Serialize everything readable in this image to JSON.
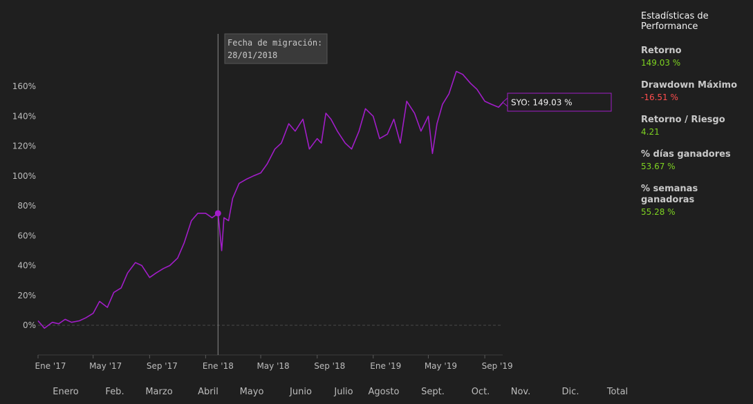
{
  "chart_data": {
    "type": "line",
    "series": [
      {
        "name": "SYO",
        "color": "#a21dc9",
        "x": [
          "2017-01-01",
          "2017-01-15",
          "2017-02-01",
          "2017-02-15",
          "2017-03-01",
          "2017-03-15",
          "2017-04-01",
          "2017-04-15",
          "2017-05-01",
          "2017-05-15",
          "2017-06-01",
          "2017-06-15",
          "2017-07-01",
          "2017-07-15",
          "2017-08-01",
          "2017-08-15",
          "2017-09-01",
          "2017-09-15",
          "2017-10-01",
          "2017-10-15",
          "2017-11-01",
          "2017-11-15",
          "2017-12-01",
          "2017-12-15",
          "2018-01-01",
          "2018-01-15",
          "2018-01-28",
          "2018-02-05",
          "2018-02-10",
          "2018-02-20",
          "2018-03-01",
          "2018-03-15",
          "2018-04-01",
          "2018-04-15",
          "2018-05-01",
          "2018-05-15",
          "2018-06-01",
          "2018-06-15",
          "2018-07-01",
          "2018-07-15",
          "2018-08-01",
          "2018-08-15",
          "2018-09-01",
          "2018-09-10",
          "2018-09-20",
          "2018-10-01",
          "2018-10-15",
          "2018-11-01",
          "2018-11-15",
          "2018-12-01",
          "2018-12-15",
          "2019-01-01",
          "2019-01-15",
          "2019-02-01",
          "2019-02-15",
          "2019-03-01",
          "2019-03-15",
          "2019-04-01",
          "2019-04-15",
          "2019-05-01",
          "2019-05-10",
          "2019-05-20",
          "2019-06-01",
          "2019-06-15",
          "2019-07-01",
          "2019-07-15",
          "2019-08-01",
          "2019-08-15",
          "2019-09-01",
          "2019-09-15",
          "2019-10-01",
          "2019-10-10"
        ],
        "y": [
          3,
          -2,
          2,
          1,
          4,
          2,
          3,
          5,
          8,
          16,
          12,
          22,
          25,
          35,
          42,
          40,
          32,
          35,
          38,
          40,
          45,
          55,
          70,
          75,
          75,
          72,
          75,
          50,
          72,
          70,
          85,
          95,
          98,
          100,
          102,
          108,
          118,
          122,
          135,
          130,
          138,
          118,
          125,
          122,
          142,
          138,
          130,
          122,
          118,
          130,
          145,
          140,
          125,
          128,
          138,
          122,
          150,
          142,
          130,
          140,
          115,
          135,
          148,
          155,
          170,
          168,
          162,
          158,
          150,
          148,
          146,
          149.03
        ]
      }
    ],
    "x_tick_labels": [
      "Ene '17",
      "May '17",
      "Sep '17",
      "Ene '18",
      "May '18",
      "Sep '18",
      "Ene '19",
      "May '19",
      "Sep '19"
    ],
    "y_tick_labels": [
      "0%",
      "20%",
      "40%",
      "60%",
      "80%",
      "100%",
      "120%",
      "140%",
      "160%"
    ],
    "ylim": [
      -20,
      180
    ],
    "grid": false,
    "annotations": [
      {
        "label": "Fecha de migración:",
        "date": "28/01/2018",
        "x": "2018-01-28",
        "y": 75
      }
    ],
    "end_label": "SYO: 149.03 %"
  },
  "colors": {
    "background": "#1f1f1f",
    "positive": "#7ed321",
    "negative": "#ff4d4d",
    "series": "#a21dc9"
  },
  "stats": {
    "title": "Estadísticas de Performance",
    "items": [
      {
        "label": "Retorno",
        "value": "149.03 %",
        "tone": "positive"
      },
      {
        "label": "Drawdown Máximo",
        "value": "-16.51 %",
        "tone": "negative"
      },
      {
        "label": "Retorno / Riesgo",
        "value": "4.21",
        "tone": "positive"
      },
      {
        "label": "% días ganadores",
        "value": "53.67 %",
        "tone": "positive"
      },
      {
        "label": "% semanas ganadoras",
        "value": "55.28 %",
        "tone": "positive"
      }
    ]
  },
  "month_tabs": [
    "Enero",
    "Feb.",
    "Marzo",
    "Abril",
    "Mayo",
    "Junio",
    "Julio",
    "Agosto",
    "Sept.",
    "Oct.",
    "Nov.",
    "Dic.",
    "Total"
  ]
}
